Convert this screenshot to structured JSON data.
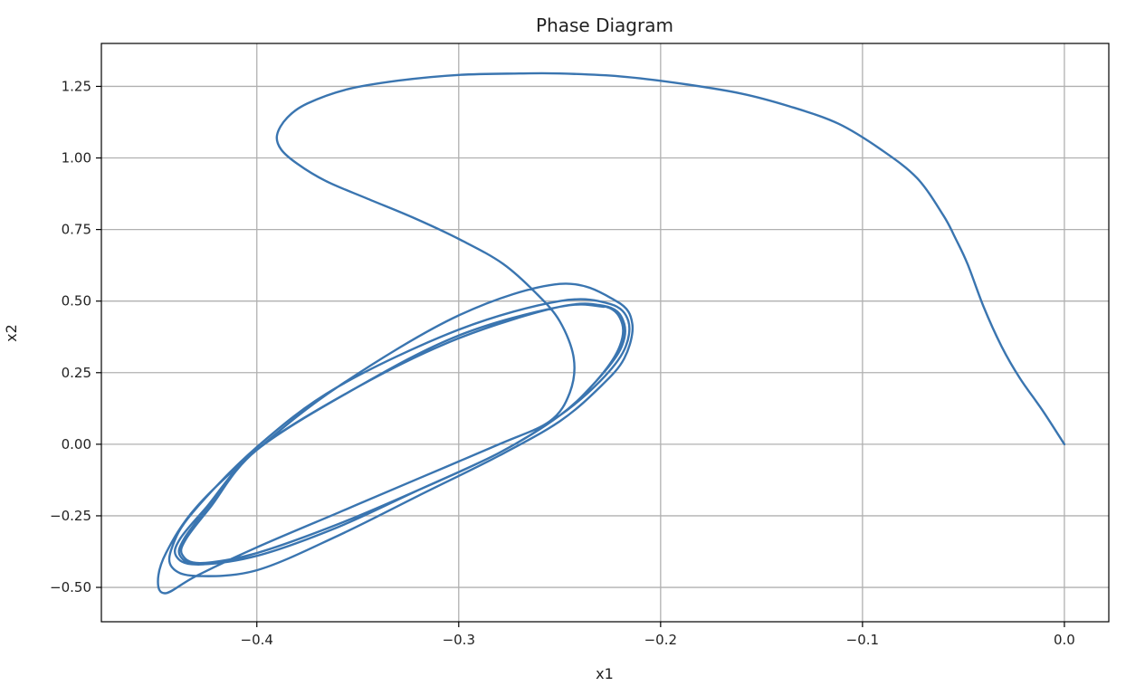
{
  "chart_data": {
    "type": "line",
    "title": "Phase Diagram",
    "xlabel": "x1",
    "ylabel": "x2",
    "xlim": [
      -0.477,
      0.022
    ],
    "ylim": [
      -0.62,
      1.4
    ],
    "xticks": [
      -0.4,
      -0.3,
      -0.2,
      -0.1,
      0.0
    ],
    "xtick_labels": [
      "−0.4",
      "−0.3",
      "−0.2",
      "−0.1",
      "0.0"
    ],
    "yticks": [
      -0.5,
      -0.25,
      0.0,
      0.25,
      0.5,
      0.75,
      1.0,
      1.25
    ],
    "ytick_labels": [
      "−0.50",
      "−0.25",
      "0.00",
      "0.25",
      "0.50",
      "0.75",
      "1.00",
      "1.25"
    ],
    "grid": true,
    "colors": {
      "series": "#3a75b0"
    },
    "series": [
      {
        "name": "",
        "x": [
          0.0,
          -0.011,
          -0.022,
          -0.031,
          -0.04,
          -0.048,
          -0.054,
          -0.06,
          -0.073,
          -0.091,
          -0.112,
          -0.136,
          -0.16,
          -0.19,
          -0.22,
          -0.25,
          -0.27,
          -0.3,
          -0.33,
          -0.355,
          -0.375,
          -0.385,
          -0.39,
          -0.388,
          -0.38,
          -0.366,
          -0.346,
          -0.322,
          -0.298,
          -0.278,
          -0.262,
          -0.25,
          -0.243,
          -0.245,
          -0.255,
          -0.28,
          -0.32,
          -0.36,
          -0.4,
          -0.43,
          -0.445,
          -0.449,
          -0.445,
          -0.43,
          -0.4,
          -0.36,
          -0.3,
          -0.25,
          -0.222,
          -0.214,
          -0.218,
          -0.23,
          -0.25,
          -0.28,
          -0.32,
          -0.36,
          -0.4,
          -0.43,
          -0.442,
          -0.442,
          -0.432,
          -0.4,
          -0.36,
          -0.3,
          -0.25,
          -0.225,
          -0.216,
          -0.218,
          -0.23,
          -0.25,
          -0.28,
          -0.32,
          -0.36,
          -0.4,
          -0.43,
          -0.44,
          -0.438,
          -0.425,
          -0.4,
          -0.35,
          -0.3,
          -0.25,
          -0.226,
          -0.218,
          -0.22,
          -0.232,
          -0.25,
          -0.28,
          -0.32,
          -0.36,
          -0.4,
          -0.428,
          -0.438,
          -0.436,
          -0.424,
          -0.4,
          -0.35,
          -0.3,
          -0.25,
          -0.227,
          -0.219,
          -0.221,
          -0.232,
          -0.25,
          -0.28,
          -0.32,
          -0.36,
          -0.4,
          -0.428,
          -0.437,
          -0.435,
          -0.423,
          -0.4,
          -0.35,
          -0.3,
          -0.25,
          -0.228
        ],
        "y": [
          0.0,
          0.12,
          0.23,
          0.34,
          0.48,
          0.63,
          0.72,
          0.8,
          0.93,
          1.03,
          1.12,
          1.18,
          1.225,
          1.26,
          1.285,
          1.295,
          1.295,
          1.29,
          1.27,
          1.24,
          1.19,
          1.14,
          1.08,
          1.03,
          0.98,
          0.92,
          0.86,
          0.79,
          0.71,
          0.63,
          0.53,
          0.43,
          0.3,
          0.18,
          0.08,
          0.0,
          -0.12,
          -0.24,
          -0.36,
          -0.46,
          -0.52,
          -0.48,
          -0.38,
          -0.22,
          -0.02,
          0.2,
          0.45,
          0.56,
          0.5,
          0.42,
          0.3,
          0.2,
          0.08,
          -0.04,
          -0.18,
          -0.32,
          -0.44,
          -0.46,
          -0.43,
          -0.36,
          -0.24,
          -0.01,
          0.2,
          0.4,
          0.5,
          0.49,
          0.43,
          0.33,
          0.22,
          0.1,
          -0.03,
          -0.16,
          -0.29,
          -0.39,
          -0.42,
          -0.39,
          -0.33,
          -0.22,
          -0.02,
          0.2,
          0.38,
          0.48,
          0.48,
          0.42,
          0.33,
          0.22,
          0.1,
          -0.03,
          -0.16,
          -0.28,
          -0.38,
          -0.42,
          -0.39,
          -0.33,
          -0.22,
          -0.02,
          0.2,
          0.37,
          0.48,
          0.48,
          0.42,
          0.33,
          0.22,
          0.1,
          -0.03,
          -0.16,
          -0.28,
          -0.38,
          -0.415,
          -0.385,
          -0.33,
          -0.22,
          -0.02,
          0.2,
          0.37,
          0.48,
          0.48
        ]
      }
    ]
  }
}
